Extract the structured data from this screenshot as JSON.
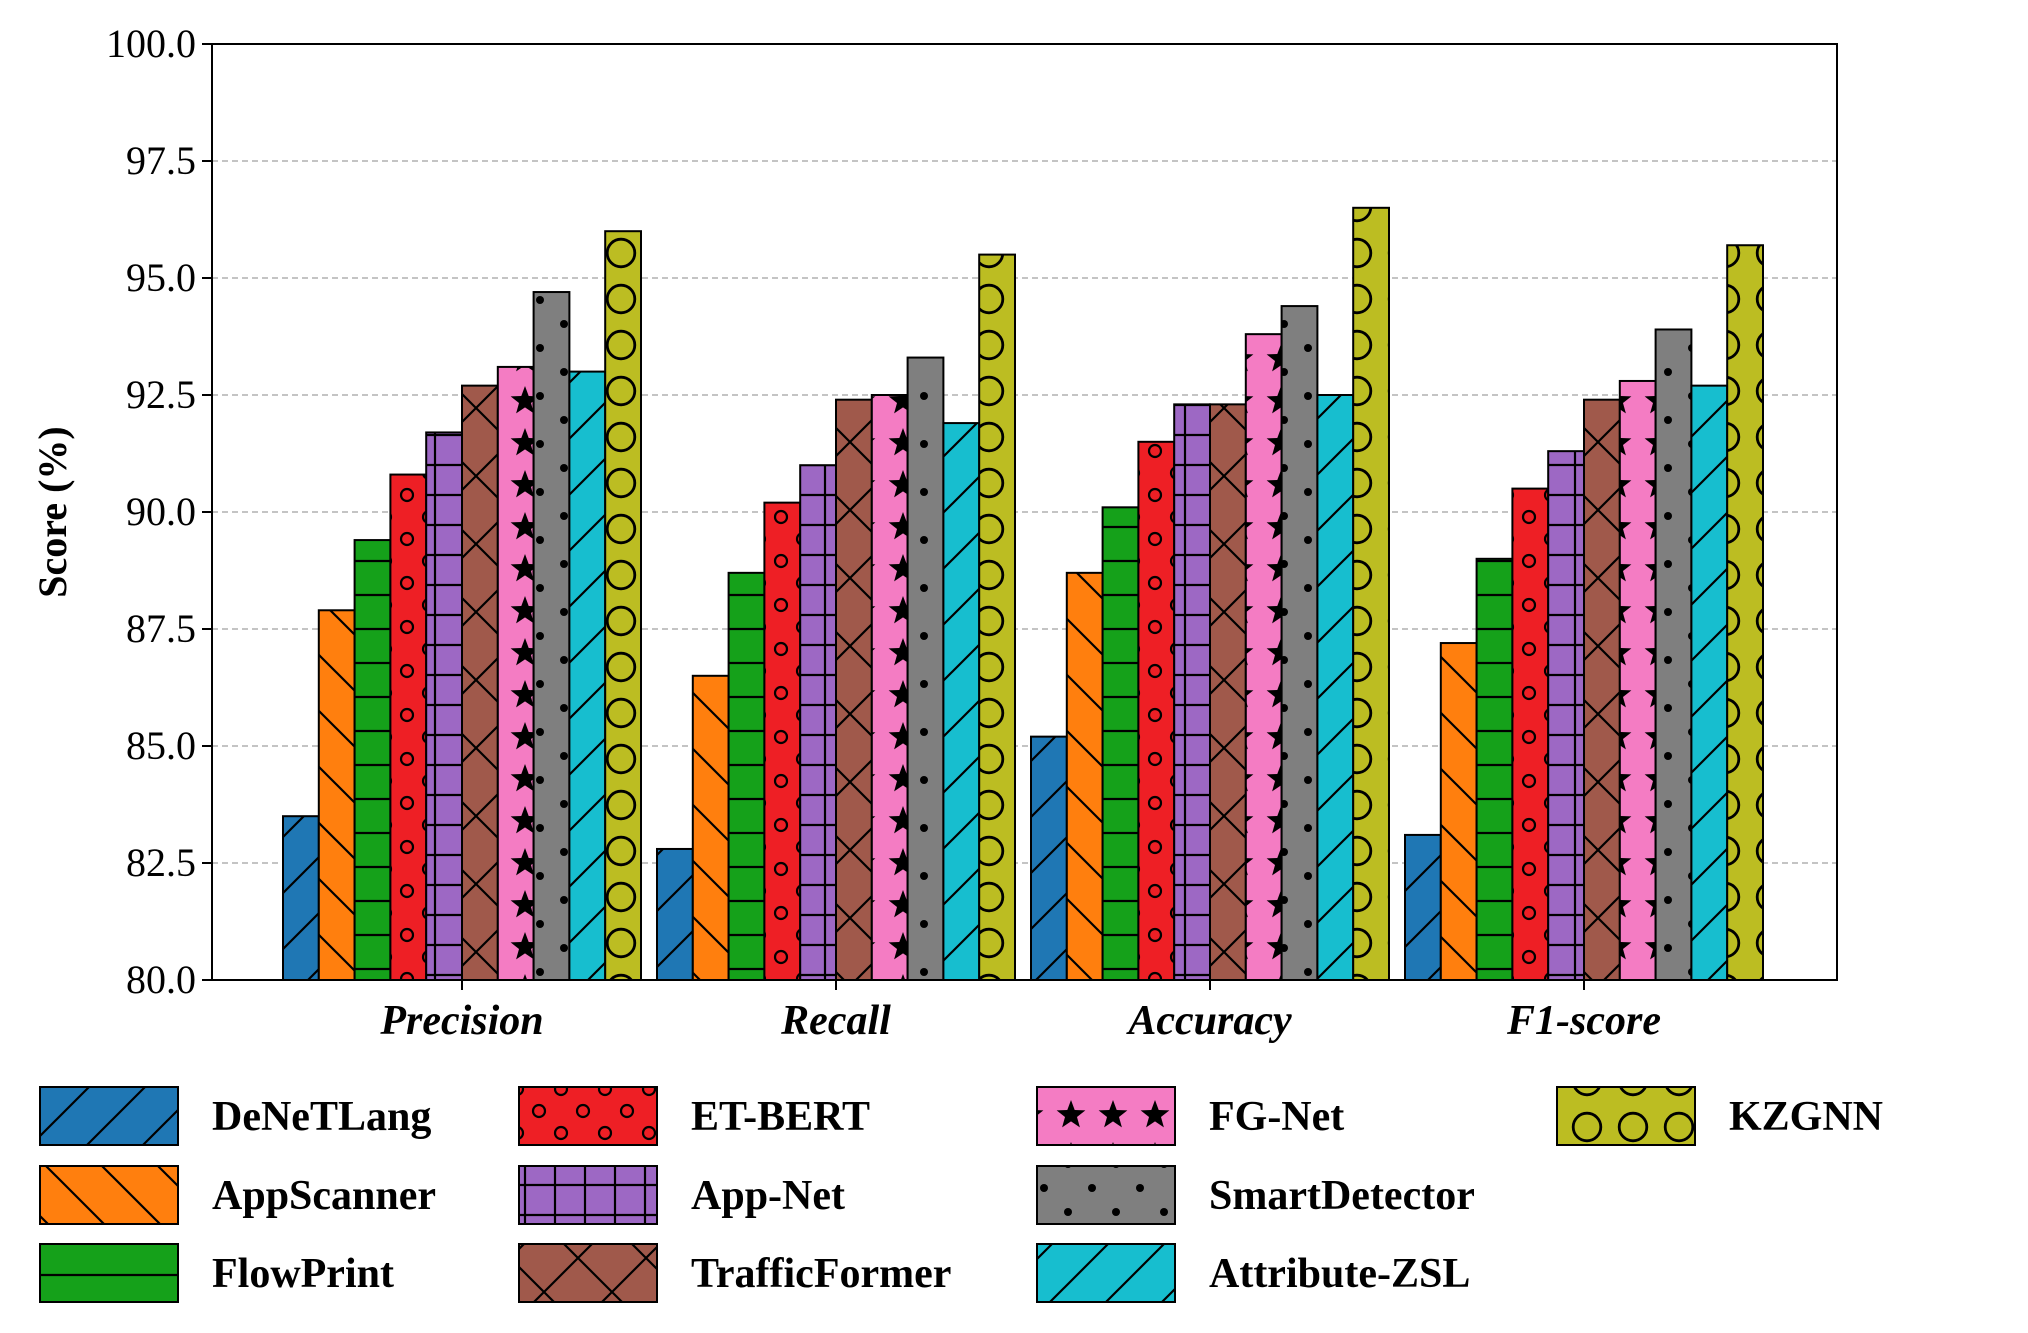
{
  "chart_data": {
    "type": "bar",
    "title": "",
    "xlabel": "",
    "ylabel": "Score (%)",
    "ylim": [
      80.0,
      100.0
    ],
    "yticks": [
      "80.0",
      "82.5",
      "85.0",
      "87.5",
      "90.0",
      "92.5",
      "95.0",
      "97.5",
      "100.0"
    ],
    "ytick_values": [
      80.0,
      82.5,
      85.0,
      87.5,
      90.0,
      92.5,
      95.0,
      97.5,
      100.0
    ],
    "grid": "horizontal dashed",
    "legend_position": "bottom",
    "categories": [
      "Precision",
      "Recall",
      "Accuracy",
      "F1-score"
    ],
    "series": [
      {
        "name": "DeNeTLang",
        "color": "#1f77b4",
        "pattern": "forward-diagonal",
        "values": [
          83.5,
          82.8,
          85.2,
          83.1
        ]
      },
      {
        "name": "AppScanner",
        "color": "#ff7f0e",
        "pattern": "back-diagonal",
        "values": [
          87.9,
          86.5,
          88.7,
          87.2
        ]
      },
      {
        "name": "FlowPrint",
        "color": "#15a11a",
        "pattern": "horizontal",
        "values": [
          89.4,
          88.7,
          90.1,
          89.0
        ]
      },
      {
        "name": "ET-BERT",
        "color": "#ee1f25",
        "pattern": "small-circles",
        "values": [
          90.8,
          90.2,
          91.5,
          90.5
        ]
      },
      {
        "name": "App-Net",
        "color": "#9d68c4",
        "pattern": "grid",
        "values": [
          91.7,
          91.0,
          92.3,
          91.3
        ]
      },
      {
        "name": "TrafficFormer",
        "color": "#a0594b",
        "pattern": "cross-diagonal",
        "values": [
          92.7,
          92.4,
          92.3,
          92.4
        ]
      },
      {
        "name": "FG-Net",
        "color": "#f47cc3",
        "pattern": "stars",
        "values": [
          93.1,
          92.5,
          93.8,
          92.8
        ]
      },
      {
        "name": "SmartDetector",
        "color": "#7f7f7f",
        "pattern": "dots",
        "values": [
          94.7,
          93.3,
          94.4,
          93.9
        ]
      },
      {
        "name": "Attribute-ZSL",
        "color": "#17becf",
        "pattern": "forward-diagonal",
        "values": [
          93.0,
          91.9,
          92.5,
          92.7
        ]
      },
      {
        "name": "KZGNN",
        "color": "#bcbd22",
        "pattern": "large-circles",
        "values": [
          96.0,
          95.5,
          96.5,
          95.7
        ]
      }
    ]
  }
}
